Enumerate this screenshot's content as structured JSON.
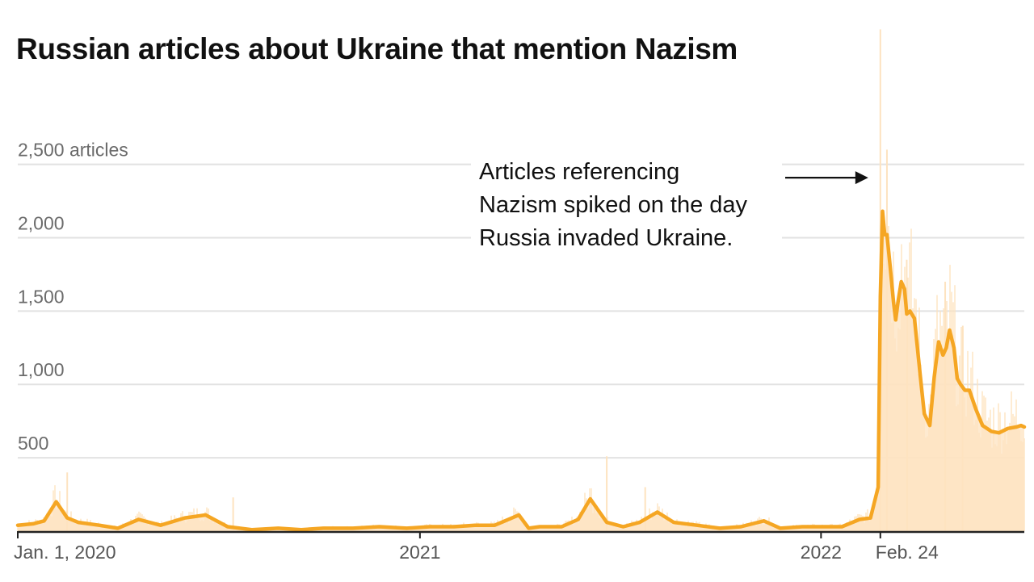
{
  "title": "Russian articles about Ukraine that mention Nazism",
  "chart_data": {
    "type": "area",
    "title": "Russian articles about Ukraine that mention Nazism",
    "y_ticks": [
      {
        "value": 500,
        "label": "500"
      },
      {
        "value": 1000,
        "label": "1,000"
      },
      {
        "value": 1500,
        "label": "1,500"
      },
      {
        "value": 2000,
        "label": "2,000"
      },
      {
        "value": 2500,
        "label": "2,500 articles"
      }
    ],
    "x_ticks": [
      {
        "date": "2020-01-01",
        "label": "Jan. 1, 2020"
      },
      {
        "date": "2021-01-01",
        "label": "2021"
      },
      {
        "date": "2022-01-01",
        "label": "2022"
      },
      {
        "date": "2022-02-24",
        "label": "Feb. 24"
      }
    ],
    "xlim": [
      "2020-01-01",
      "2022-07-05"
    ],
    "ylim": [
      0,
      3400
    ],
    "grid": true,
    "colors": {
      "line": "#f5a623",
      "daily_bars": "#fde3c0",
      "grid": "#e2e2e2",
      "axis": "#222222"
    },
    "series": [
      {
        "kind": "rolling_average",
        "x": [
          "2020-01-01",
          "2020-01-15",
          "2020-01-25",
          "2020-02-05",
          "2020-02-15",
          "2020-02-25",
          "2020-03-15",
          "2020-04-01",
          "2020-04-20",
          "2020-05-10",
          "2020-06-01",
          "2020-06-20",
          "2020-07-10",
          "2020-08-01",
          "2020-08-25",
          "2020-09-15",
          "2020-10-05",
          "2020-11-01",
          "2020-11-25",
          "2020-12-20",
          "2021-01-10",
          "2021-02-01",
          "2021-02-20",
          "2021-03-10",
          "2021-04-01",
          "2021-04-10",
          "2021-04-20",
          "2021-05-10",
          "2021-05-25",
          "2021-06-05",
          "2021-06-20",
          "2021-07-05",
          "2021-07-20",
          "2021-08-05",
          "2021-08-20",
          "2021-09-10",
          "2021-10-01",
          "2021-10-20",
          "2021-11-10",
          "2021-11-25",
          "2021-12-15",
          "2022-01-05",
          "2022-01-20",
          "2022-02-05",
          "2022-02-15",
          "2022-02-22",
          "2022-02-24",
          "2022-02-26",
          "2022-02-28",
          "2022-03-02",
          "2022-03-05",
          "2022-03-08",
          "2022-03-10",
          "2022-03-12",
          "2022-03-15",
          "2022-03-18",
          "2022-03-20",
          "2022-03-23",
          "2022-03-27",
          "2022-04-01",
          "2022-04-05",
          "2022-04-10",
          "2022-04-14",
          "2022-04-18",
          "2022-04-22",
          "2022-04-25",
          "2022-04-28",
          "2022-05-02",
          "2022-05-05",
          "2022-05-08",
          "2022-05-12",
          "2022-05-16",
          "2022-05-22",
          "2022-05-28",
          "2022-06-05",
          "2022-06-12",
          "2022-06-20",
          "2022-06-28",
          "2022-07-02",
          "2022-07-05"
        ],
        "y": [
          40,
          50,
          70,
          200,
          90,
          60,
          40,
          20,
          80,
          40,
          90,
          110,
          30,
          10,
          20,
          10,
          20,
          20,
          30,
          20,
          30,
          30,
          40,
          40,
          110,
          20,
          30,
          30,
          80,
          220,
          60,
          30,
          60,
          130,
          60,
          40,
          20,
          30,
          70,
          20,
          30,
          30,
          30,
          80,
          90,
          300,
          1600,
          2180,
          2020,
          2020,
          1800,
          1560,
          1440,
          1560,
          1700,
          1650,
          1480,
          1500,
          1450,
          1080,
          800,
          720,
          1050,
          1290,
          1200,
          1250,
          1370,
          1250,
          1040,
          1000,
          960,
          960,
          830,
          720,
          680,
          670,
          700,
          710,
          720,
          710
        ]
      },
      {
        "kind": "daily",
        "spikes": [
          {
            "x": "2020-02-15",
            "y": 400
          },
          {
            "x": "2020-07-15",
            "y": 230
          },
          {
            "x": "2021-06-20",
            "y": 510
          },
          {
            "x": "2021-07-25",
            "y": 300
          },
          {
            "x": "2022-02-24",
            "y": 3420
          },
          {
            "x": "2022-03-02",
            "y": 2600
          },
          {
            "x": "2022-03-20",
            "y": 1850
          },
          {
            "x": "2022-04-24",
            "y": 1700
          },
          {
            "x": "2022-05-10",
            "y": 1400
          }
        ]
      }
    ],
    "annotation": {
      "lines": [
        "Articles referencing",
        "Nazism spiked on the day",
        "Russia invaded Ukraine."
      ],
      "target": {
        "x": "2022-02-24",
        "y": 2200
      }
    }
  }
}
